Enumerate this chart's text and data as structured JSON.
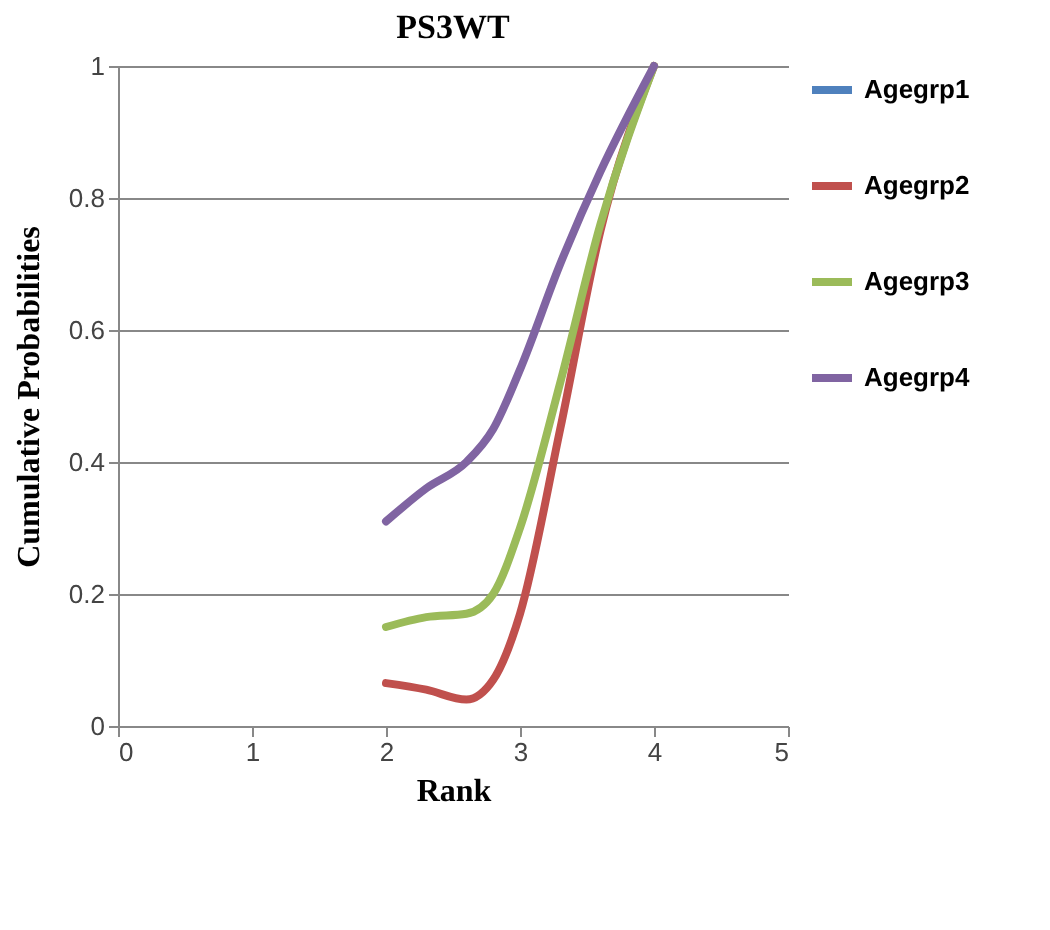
{
  "chart_data": {
    "type": "line",
    "title": "PS3WT",
    "xlabel": "Rank",
    "ylabel": "Cumulative Probabilities",
    "x": [
      2,
      2.3,
      2.6,
      2.8,
      3,
      3.3,
      3.6,
      4
    ],
    "series": [
      {
        "name": "Agegrp1",
        "color": "#4f81bd",
        "values": [
          null,
          null,
          null,
          null,
          null,
          null,
          null,
          null
        ]
      },
      {
        "name": "Agegrp2",
        "color": "#c0504d",
        "values": [
          0.065,
          0.055,
          0.04,
          0.07,
          0.17,
          0.45,
          0.75,
          1
        ]
      },
      {
        "name": "Agegrp3",
        "color": "#9bbb59",
        "values": [
          0.15,
          0.165,
          0.17,
          0.2,
          0.3,
          0.52,
          0.76,
          1
        ]
      },
      {
        "name": "Agegrp4",
        "color": "#8064a2",
        "values": [
          0.31,
          0.36,
          0.4,
          0.45,
          0.54,
          0.7,
          0.84,
          1
        ]
      }
    ],
    "xlim": [
      0,
      5
    ],
    "xticks": [
      0,
      1,
      2,
      3,
      4,
      5
    ],
    "ylim": [
      0,
      1
    ],
    "yticks": [
      0,
      0.2,
      0.4,
      0.6,
      0.8,
      1
    ],
    "grid": "y",
    "legend": "right",
    "marker": "none",
    "line_style": "solid"
  }
}
